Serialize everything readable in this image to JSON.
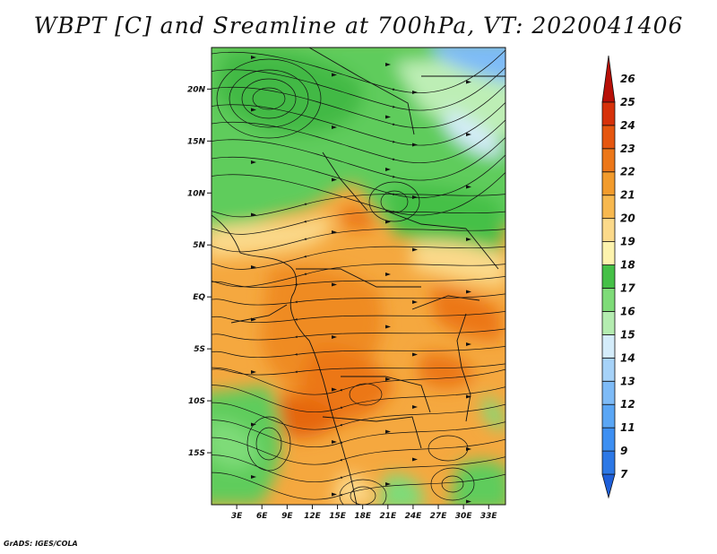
{
  "title": "WBPT [C] and Sreamline at 700hPa, VT: 2020041406",
  "credit": "GrADS: IGES/COLA",
  "map": {
    "lon_range": [
      0,
      35
    ],
    "lat_range": [
      -20,
      24
    ],
    "lon_ticks": [
      "3E",
      "6E",
      "9E",
      "12E",
      "15E",
      "18E",
      "21E",
      "24E",
      "27E",
      "30E",
      "33E"
    ],
    "lon_tick_values": [
      3,
      6,
      9,
      12,
      15,
      18,
      21,
      24,
      27,
      30,
      33
    ],
    "lat_ticks": [
      "20N",
      "15N",
      "10N",
      "5N",
      "EQ",
      "5S",
      "10S",
      "15S"
    ],
    "lat_tick_values": [
      20,
      15,
      10,
      5,
      0,
      -5,
      -10,
      -15
    ]
  },
  "colorbar": {
    "labels": [
      "7",
      "9",
      "11",
      "12",
      "13",
      "14",
      "15",
      "16",
      "17",
      "18",
      "19",
      "20",
      "21",
      "22",
      "23",
      "24",
      "25",
      "26"
    ],
    "colors": [
      "#1e5fd9",
      "#2c78e6",
      "#3d8ff2",
      "#5aa6f5",
      "#7ebbf7",
      "#a6d2f8",
      "#d4ecfa",
      "#b4ecb0",
      "#7edb78",
      "#45c047",
      "#fdf3ad",
      "#fbd98a",
      "#f7b84f",
      "#f29b2c",
      "#ec7719",
      "#e5560f",
      "#d6310a",
      "#b70f07"
    ]
  }
}
